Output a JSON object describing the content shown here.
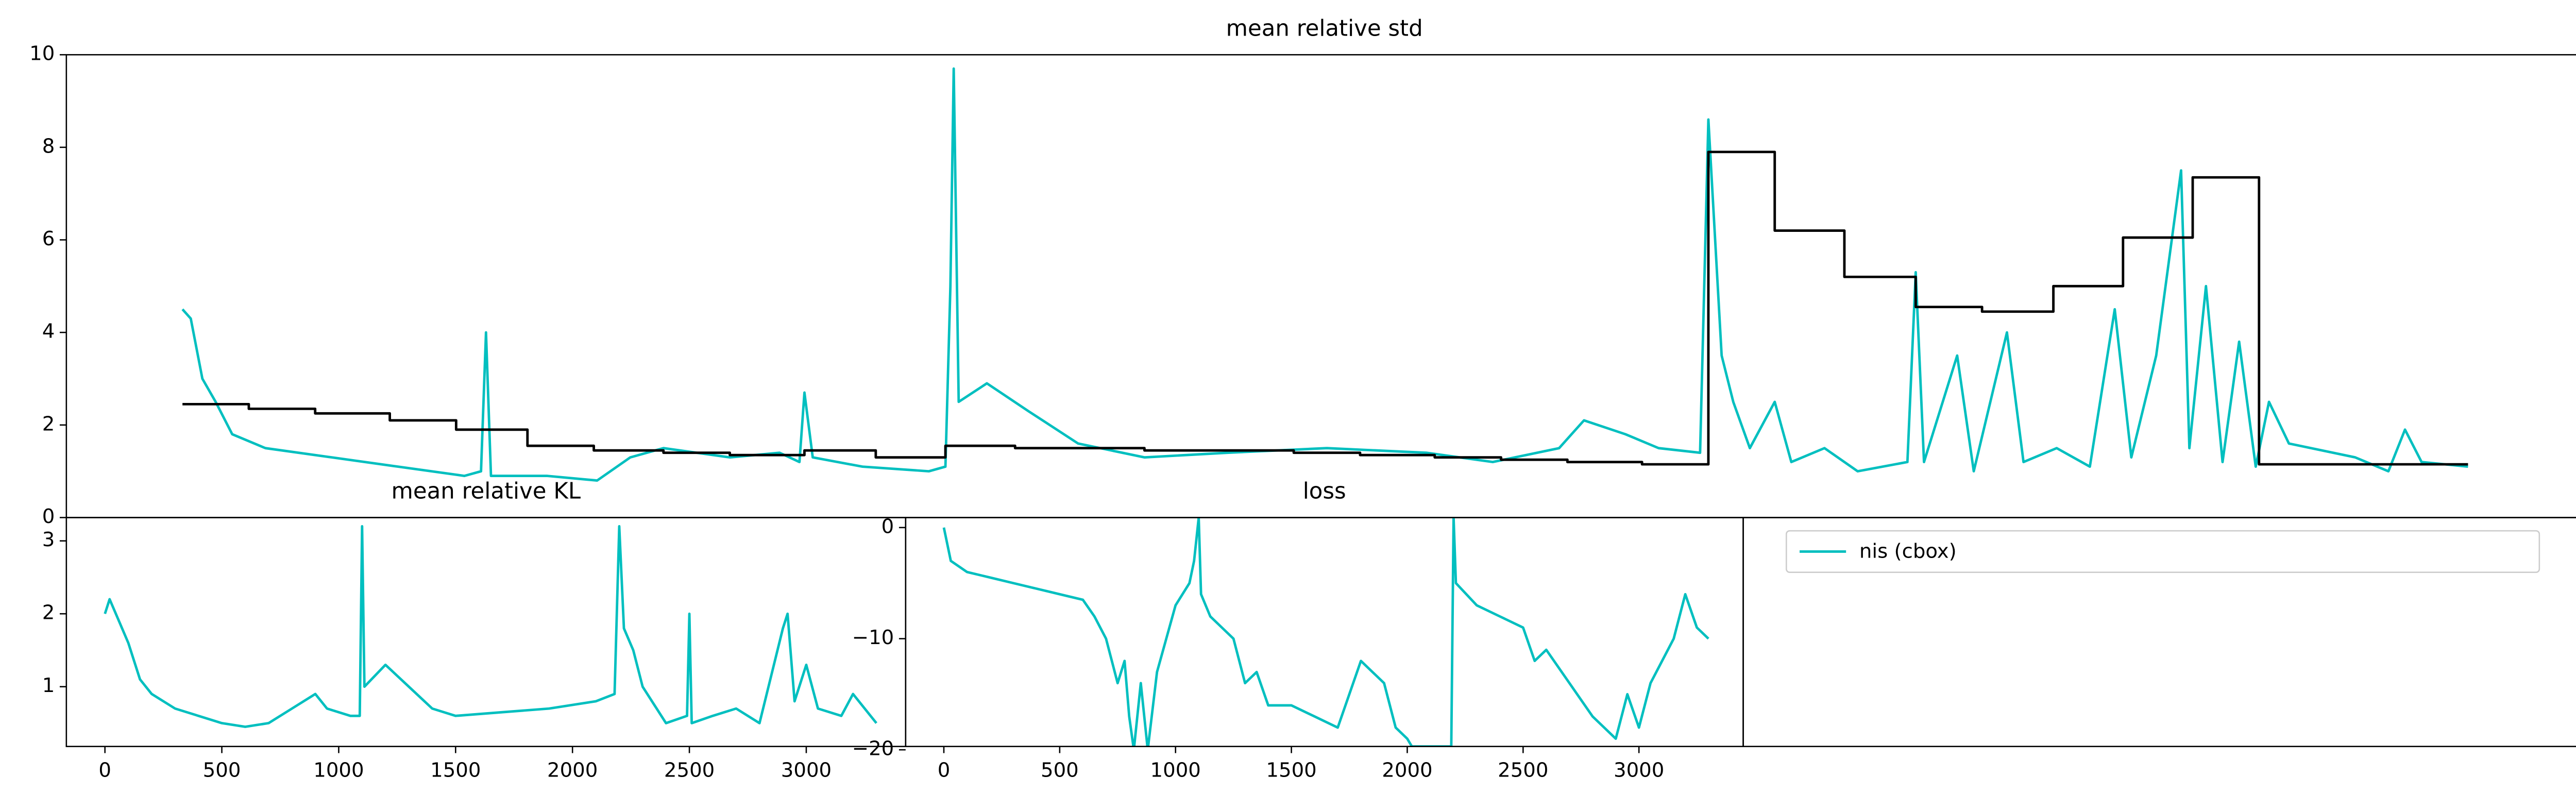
{
  "chart_data": [
    {
      "type": "line",
      "title": "mean relative std",
      "xlim": [
        -70,
        1447
      ],
      "ylim": [
        0,
        10
      ],
      "yticks": [
        0,
        2,
        4,
        6,
        8,
        10
      ],
      "series": [
        {
          "name": "nis (cbox)",
          "color": "#00bfbf",
          "x": [
            0,
            5,
            12,
            20,
            30,
            50,
            90,
            130,
            170,
            180,
            183,
            186,
            220,
            250,
            270,
            290,
            330,
            360,
            372,
            375,
            380,
            410,
            450,
            460,
            463,
            465,
            468,
            485,
            510,
            540,
            580,
            630,
            690,
            750,
            790,
            830,
            845,
            870,
            890,
            915,
            920,
            928,
            935,
            945,
            960,
            970,
            990,
            1010,
            1040,
            1045,
            1050,
            1070,
            1080,
            1100,
            1110,
            1130,
            1150,
            1165,
            1175,
            1190,
            1205,
            1210,
            1220,
            1230,
            1240,
            1250,
            1258,
            1270,
            1310,
            1330,
            1340,
            1350,
            1378
          ],
          "values": [
            4.5,
            4.3,
            3.0,
            2.5,
            1.8,
            1.5,
            1.3,
            1.1,
            0.9,
            1.0,
            4.0,
            0.9,
            0.9,
            0.8,
            1.3,
            1.5,
            1.3,
            1.4,
            1.2,
            2.7,
            1.3,
            1.1,
            1.0,
            1.1,
            5.0,
            9.7,
            2.5,
            2.9,
            2.3,
            1.6,
            1.3,
            1.4,
            1.5,
            1.4,
            1.2,
            1.5,
            2.1,
            1.8,
            1.5,
            1.4,
            8.6,
            3.5,
            2.5,
            1.5,
            2.5,
            1.2,
            1.5,
            1.0,
            1.2,
            5.3,
            1.2,
            3.5,
            1.0,
            4.0,
            1.2,
            1.5,
            1.1,
            4.5,
            1.3,
            3.5,
            7.5,
            1.5,
            5.0,
            1.2,
            3.8,
            1.1,
            2.5,
            1.6,
            1.3,
            1.0,
            1.9,
            1.2,
            1.1
          ]
        },
        {
          "color": "#000000",
          "drawstyle": "steps-post",
          "x": [
            0,
            40,
            80,
            125,
            165,
            208,
            248,
            290,
            330,
            375,
            418,
            460,
            502,
            580,
            670,
            710,
            755,
            795,
            835,
            880,
            920,
            960,
            1002,
            1045,
            1085,
            1128,
            1170,
            1212,
            1252,
            1378
          ],
          "values": [
            2.45,
            2.35,
            2.25,
            2.1,
            1.9,
            1.55,
            1.45,
            1.4,
            1.35,
            1.45,
            1.3,
            1.55,
            1.5,
            1.45,
            1.4,
            1.35,
            1.3,
            1.25,
            1.2,
            1.15,
            7.9,
            6.2,
            5.2,
            4.55,
            4.45,
            5.0,
            6.05,
            7.35,
            1.15,
            1.15
          ]
        }
      ]
    },
    {
      "type": "line",
      "title": "mean relative KL",
      "xlim": [
        -165,
        3425
      ],
      "xticks": [
        0,
        500,
        1000,
        1500,
        2000,
        2500,
        3000
      ],
      "ylim": [
        0.18,
        3.32
      ],
      "yticks": [
        1,
        2,
        3
      ],
      "series": [
        {
          "color": "#00bfbf",
          "x": [
            0,
            20,
            60,
            100,
            150,
            200,
            300,
            400,
            500,
            600,
            700,
            800,
            900,
            950,
            1050,
            1090,
            1100,
            1110,
            1200,
            1300,
            1400,
            1500,
            1700,
            1900,
            2100,
            2180,
            2200,
            2220,
            2260,
            2300,
            2400,
            2490,
            2500,
            2510,
            2600,
            2700,
            2800,
            2900,
            2920,
            2950,
            3000,
            3050,
            3150,
            3200,
            3300
          ],
          "values": [
            2.0,
            2.2,
            1.9,
            1.6,
            1.1,
            0.9,
            0.7,
            0.6,
            0.5,
            0.45,
            0.5,
            0.7,
            0.9,
            0.7,
            0.6,
            0.6,
            3.2,
            1.0,
            1.3,
            1.0,
            0.7,
            0.6,
            0.65,
            0.7,
            0.8,
            0.9,
            3.2,
            1.8,
            1.5,
            1.0,
            0.5,
            0.6,
            2.0,
            0.5,
            0.6,
            0.7,
            0.5,
            1.8,
            2.0,
            0.8,
            1.3,
            0.7,
            0.6,
            0.9,
            0.5
          ]
        }
      ]
    },
    {
      "type": "line",
      "title": "loss",
      "xlim": [
        -165,
        3450
      ],
      "xticks": [
        0,
        500,
        1000,
        1500,
        2000,
        2500,
        3000
      ],
      "ylim": [
        -19.7,
        0.9
      ],
      "yticks": [
        0,
        {
          "value": -10,
          "label": "−10"
        },
        {
          "value": -20,
          "label": "−20"
        }
      ],
      "series": [
        {
          "color": "#00bfbf",
          "x": [
            0,
            30,
            100,
            200,
            300,
            400,
            500,
            600,
            650,
            700,
            750,
            780,
            800,
            820,
            850,
            880,
            920,
            960,
            1000,
            1060,
            1080,
            1100,
            1110,
            1150,
            1200,
            1250,
            1300,
            1350,
            1400,
            1500,
            1600,
            1700,
            1750,
            1800,
            1850,
            1900,
            1950,
            2000,
            2020,
            2190,
            2200,
            2210,
            2300,
            2400,
            2500,
            2550,
            2600,
            2700,
            2800,
            2900,
            2950,
            3000,
            3050,
            3100,
            3150,
            3200,
            3250,
            3300
          ],
          "values": [
            0,
            -3,
            -4,
            -4.5,
            -5,
            -5.5,
            -6,
            -6.5,
            -8,
            -10,
            -14,
            -12,
            -17,
            -20,
            -14,
            -20,
            -13,
            -10,
            -7,
            -5,
            -3,
            0.9,
            -6,
            -8,
            -9,
            -10,
            -14,
            -13,
            -16,
            -16,
            -17,
            -18,
            -15,
            -12,
            -13,
            -14,
            -18,
            -19,
            -19.7,
            -19.7,
            0.9,
            -5,
            -7,
            -8,
            -9,
            -12,
            -11,
            -14,
            -17,
            -19,
            -15,
            -18,
            -14,
            -12,
            -10,
            -6,
            -9,
            -10
          ]
        }
      ]
    }
  ]
}
